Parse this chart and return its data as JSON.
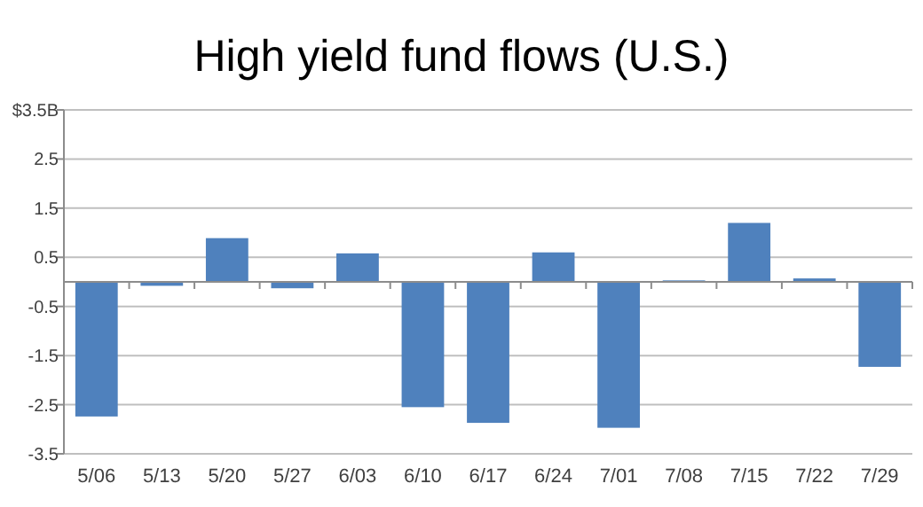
{
  "chart_data": {
    "type": "bar",
    "title": "High yield fund flows (U.S.)",
    "categories": [
      "5/06",
      "5/13",
      "5/20",
      "5/27",
      "6/03",
      "6/10",
      "6/17",
      "6/24",
      "7/01",
      "7/08",
      "7/15",
      "7/22",
      "7/29"
    ],
    "values": [
      -2.74,
      -0.08,
      0.89,
      -0.13,
      0.58,
      -2.55,
      -2.87,
      0.6,
      -2.97,
      0.03,
      1.2,
      0.07,
      -1.73
    ],
    "color": "#4f81bd",
    "ylim": [
      -3.5,
      3.5
    ],
    "yticks": [
      {
        "value": 3.5,
        "label": "$3.5B"
      },
      2.5,
      1.5,
      0.5,
      -0.5,
      -1.5,
      -2.5,
      -3.5
    ],
    "grid": "y"
  }
}
